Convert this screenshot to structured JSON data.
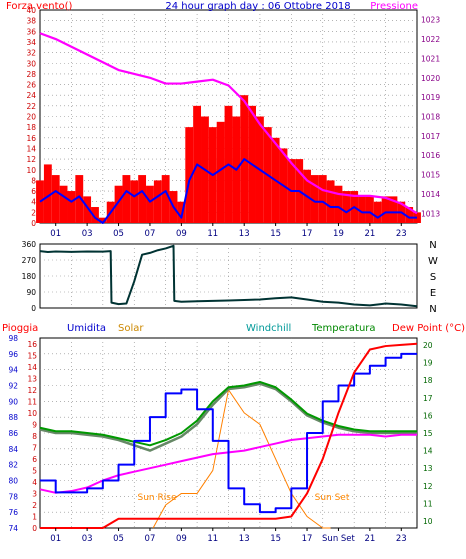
{
  "charts": {
    "wind_pressure": {
      "title": "24 hour graph day : 06 Ottobre 2018",
      "left_label": "Forza vento()",
      "right_label": "Pressione",
      "left_ticks": [
        "0",
        "2",
        "4",
        "6",
        "8",
        "10",
        "12",
        "14",
        "16",
        "18",
        "20",
        "22",
        "24",
        "26",
        "28",
        "30",
        "32",
        "34",
        "36",
        "38",
        "40"
      ],
      "right_ticks": [
        "1013",
        "1014",
        "1015",
        "1016",
        "1017",
        "1018",
        "1019",
        "1020",
        "1021",
        "1022",
        "1023"
      ],
      "x_ticks": [
        "01",
        "03",
        "05",
        "07",
        "09",
        "11",
        "13",
        "15",
        "17",
        "19",
        "21",
        "23"
      ],
      "colors": {
        "gust": "#ff0000",
        "speed": "#0000ff",
        "pressure": "#ff00ff"
      }
    },
    "direction": {
      "left_ticks": [
        "0",
        "90",
        "180",
        "270",
        "360"
      ],
      "right_ticks": [
        "N",
        "E",
        "S",
        "W",
        "N"
      ],
      "color": "#003333"
    },
    "multi": {
      "legend": {
        "rain": "Pioggia",
        "humidity": "Umidita",
        "solar": "Solar",
        "windchill": "Windchill",
        "temperature": "Temperatura",
        "dewpoint": "Dew Point (°C)"
      },
      "humidity_ticks": [
        "74",
        "76",
        "78",
        "80",
        "82",
        "84",
        "86",
        "88",
        "90",
        "92",
        "94",
        "96",
        "98"
      ],
      "rain_ticks": [
        "0",
        "1",
        "2",
        "3",
        "4",
        "5",
        "6",
        "7",
        "8",
        "9",
        "10",
        "11",
        "12",
        "13",
        "14",
        "15",
        "16"
      ],
      "temp_ticks": [
        "10",
        "11",
        "12",
        "13",
        "14",
        "15",
        "16",
        "17",
        "18",
        "19",
        "20"
      ],
      "x_ticks": [
        "01",
        "03",
        "05",
        "07",
        "09",
        "11",
        "13",
        "15",
        "17",
        "Sun Set",
        "21",
        "23"
      ],
      "sun_rise": "Sun Rise",
      "sun_set": "Sun Set",
      "colors": {
        "rain": "#ff0000",
        "humidity": "#0000ff",
        "solar": "#ff8000",
        "windchill": "#009900",
        "temperature": "#009900",
        "dewpoint": "#ff00ff"
      }
    }
  },
  "chart_data": [
    {
      "type": "line",
      "title": "24 hour graph day : 06 Ottobre 2018",
      "xlim": [
        0,
        24
      ],
      "ylim": [
        0,
        40
      ],
      "y2lim": [
        1012.5,
        1023.5
      ],
      "series": [
        {
          "name": "Forza vento()",
          "x": [
            0,
            0.5,
            1,
            1.5,
            2,
            2.5,
            3,
            3.5,
            4,
            4.5,
            5,
            5.5,
            6,
            6.5,
            7,
            7.5,
            8,
            8.5,
            9,
            9.5,
            10,
            10.5,
            11,
            11.5,
            12,
            12.5,
            13,
            13.5,
            14,
            14.5,
            15,
            15.5,
            16,
            16.5,
            17,
            17.5,
            18,
            18.5,
            19,
            19.5,
            20,
            20.5,
            21,
            21.5,
            22,
            22.5,
            23,
            23.5,
            24
          ],
          "values": [
            4,
            5,
            6,
            5,
            4,
            5,
            3,
            1,
            0,
            2,
            4,
            6,
            5,
            6,
            4,
            5,
            6,
            3,
            1,
            8,
            11,
            10,
            9,
            10,
            11,
            10,
            12,
            11,
            10,
            9,
            8,
            7,
            6,
            6,
            5,
            4,
            4,
            3,
            3,
            2,
            3,
            2,
            2,
            1,
            2,
            2,
            2,
            1,
            1
          ]
        },
        {
          "name": "Gust",
          "x": [
            0,
            0.5,
            1,
            1.5,
            2,
            2.5,
            3,
            3.5,
            4,
            4.5,
            5,
            5.5,
            6,
            6.5,
            7,
            7.5,
            8,
            8.5,
            9,
            9.5,
            10,
            10.5,
            11,
            11.5,
            12,
            12.5,
            13,
            13.5,
            14,
            14.5,
            15,
            15.5,
            16,
            16.5,
            17,
            17.5,
            18,
            18.5,
            19,
            19.5,
            20,
            20.5,
            21,
            21.5,
            22,
            22.5,
            23,
            23.5,
            24
          ],
          "values": [
            8,
            11,
            9,
            7,
            6,
            9,
            5,
            3,
            1,
            4,
            7,
            9,
            8,
            9,
            7,
            8,
            9,
            6,
            4,
            18,
            22,
            20,
            18,
            19,
            22,
            20,
            24,
            22,
            20,
            18,
            16,
            14,
            12,
            12,
            10,
            9,
            9,
            8,
            7,
            6,
            6,
            5,
            5,
            4,
            5,
            5,
            4,
            3,
            2
          ]
        },
        {
          "name": "Pressione",
          "axis": "y2",
          "x": [
            0,
            1,
            2,
            3,
            4,
            5,
            6,
            7,
            8,
            9,
            10,
            11,
            12,
            13,
            14,
            15,
            16,
            17,
            18,
            19,
            20,
            21,
            22,
            23,
            24
          ],
          "values": [
            1022.3,
            1022,
            1021.6,
            1021.2,
            1020.8,
            1020.4,
            1020.2,
            1020,
            1019.7,
            1019.7,
            1019.8,
            1019.9,
            1019.6,
            1018.8,
            1017.6,
            1016.6,
            1015.6,
            1014.7,
            1014.2,
            1014.0,
            1013.9,
            1013.9,
            1013.8,
            1013.5,
            1013.0
          ]
        }
      ]
    },
    {
      "type": "line",
      "xlim": [
        0,
        24
      ],
      "ylim": [
        0,
        360
      ],
      "series": [
        {
          "name": "Direzione",
          "x": [
            0,
            0.5,
            1,
            2,
            3,
            4,
            4.5,
            4.55,
            5,
            5.5,
            6,
            6.5,
            7,
            7.5,
            8,
            8.5,
            8.55,
            9,
            10,
            11,
            12,
            13,
            14,
            15,
            16,
            17,
            18,
            19,
            20,
            21,
            22,
            23,
            24
          ],
          "values": [
            320,
            315,
            318,
            316,
            318,
            317,
            320,
            30,
            22,
            25,
            150,
            300,
            310,
            325,
            335,
            350,
            40,
            35,
            38,
            40,
            42,
            45,
            48,
            55,
            60,
            48,
            35,
            30,
            20,
            15,
            25,
            20,
            10
          ]
        }
      ]
    },
    {
      "type": "line",
      "xlim": [
        0,
        24
      ],
      "ylim": [
        74,
        98
      ],
      "series": [
        {
          "name": "Umidita",
          "x": [
            0,
            1,
            2,
            3,
            4,
            5,
            6,
            7,
            8,
            9,
            10,
            11,
            12,
            13,
            14,
            15,
            16,
            17,
            18,
            19,
            20,
            21,
            22,
            23,
            24
          ],
          "values": [
            80,
            78.5,
            78.5,
            79,
            80,
            82,
            85,
            88,
            91,
            91.5,
            89,
            85,
            79,
            77,
            76,
            76.5,
            79,
            86,
            90,
            92,
            93.5,
            94.5,
            95.5,
            96,
            96
          ]
        },
        {
          "name": "Pioggia",
          "axis": "rain",
          "x": [
            0,
            3,
            4,
            5,
            7,
            8,
            9,
            10,
            11,
            12,
            13,
            14,
            15,
            16,
            17,
            18,
            19,
            20,
            21,
            22,
            23,
            24
          ],
          "values": [
            0,
            0,
            0,
            0.8,
            0.8,
            0.8,
            0.8,
            0.8,
            0.8,
            0.8,
            0.8,
            0.8,
            0.8,
            1,
            3,
            6,
            10,
            13.5,
            15.5,
            15.8,
            15.9,
            16
          ]
        },
        {
          "name": "Solar",
          "axis": "rain",
          "x": [
            7.2,
            8,
            9,
            10,
            11,
            12,
            13,
            14,
            15,
            16,
            17,
            18,
            18.5
          ],
          "values": [
            0,
            2,
            3,
            3,
            5,
            12,
            10,
            9,
            6,
            3,
            1,
            0,
            0
          ]
        },
        {
          "name": "Windchill",
          "axis": "temp",
          "x": [
            0,
            1,
            2,
            3,
            4,
            5,
            6,
            7,
            8,
            9,
            10,
            11,
            12,
            13,
            14,
            15,
            16,
            17,
            18,
            19,
            20,
            21,
            22,
            23,
            24
          ],
          "values": [
            15.2,
            15.0,
            15.0,
            14.9,
            14.8,
            14.6,
            14.3,
            14.0,
            14.4,
            14.8,
            15.5,
            16.6,
            17.5,
            17.6,
            17.8,
            17.5,
            16.8,
            16.0,
            15.6,
            15.3,
            15.1,
            15.0,
            15.0,
            15.0,
            15.0
          ]
        },
        {
          "name": "Temperatura",
          "axis": "temp",
          "x": [
            0,
            1,
            2,
            3,
            4,
            5,
            6,
            7,
            8,
            9,
            10,
            11,
            12,
            13,
            14,
            15,
            16,
            17,
            18,
            19,
            20,
            21,
            22,
            23,
            24
          ],
          "values": [
            15.3,
            15.1,
            15.1,
            15.0,
            14.9,
            14.7,
            14.5,
            14.3,
            14.6,
            15.0,
            15.7,
            16.8,
            17.6,
            17.7,
            17.9,
            17.6,
            16.9,
            16.1,
            15.7,
            15.4,
            15.2,
            15.1,
            15.1,
            15.1,
            15.1
          ]
        },
        {
          "name": "Dew Point (°C)",
          "axis": "temp",
          "x": [
            0,
            1,
            2,
            3,
            4,
            5,
            6,
            7,
            8,
            9,
            10,
            11,
            12,
            13,
            14,
            15,
            16,
            17,
            18,
            19,
            20,
            21,
            22,
            23,
            24
          ],
          "values": [
            11.8,
            11.6,
            11.7,
            11.9,
            12.3,
            12.6,
            12.8,
            13.0,
            13.2,
            13.4,
            13.6,
            13.8,
            13.9,
            14.0,
            14.2,
            14.4,
            14.6,
            14.7,
            14.8,
            14.9,
            14.9,
            14.9,
            14.8,
            14.9,
            14.9
          ]
        }
      ]
    }
  ]
}
